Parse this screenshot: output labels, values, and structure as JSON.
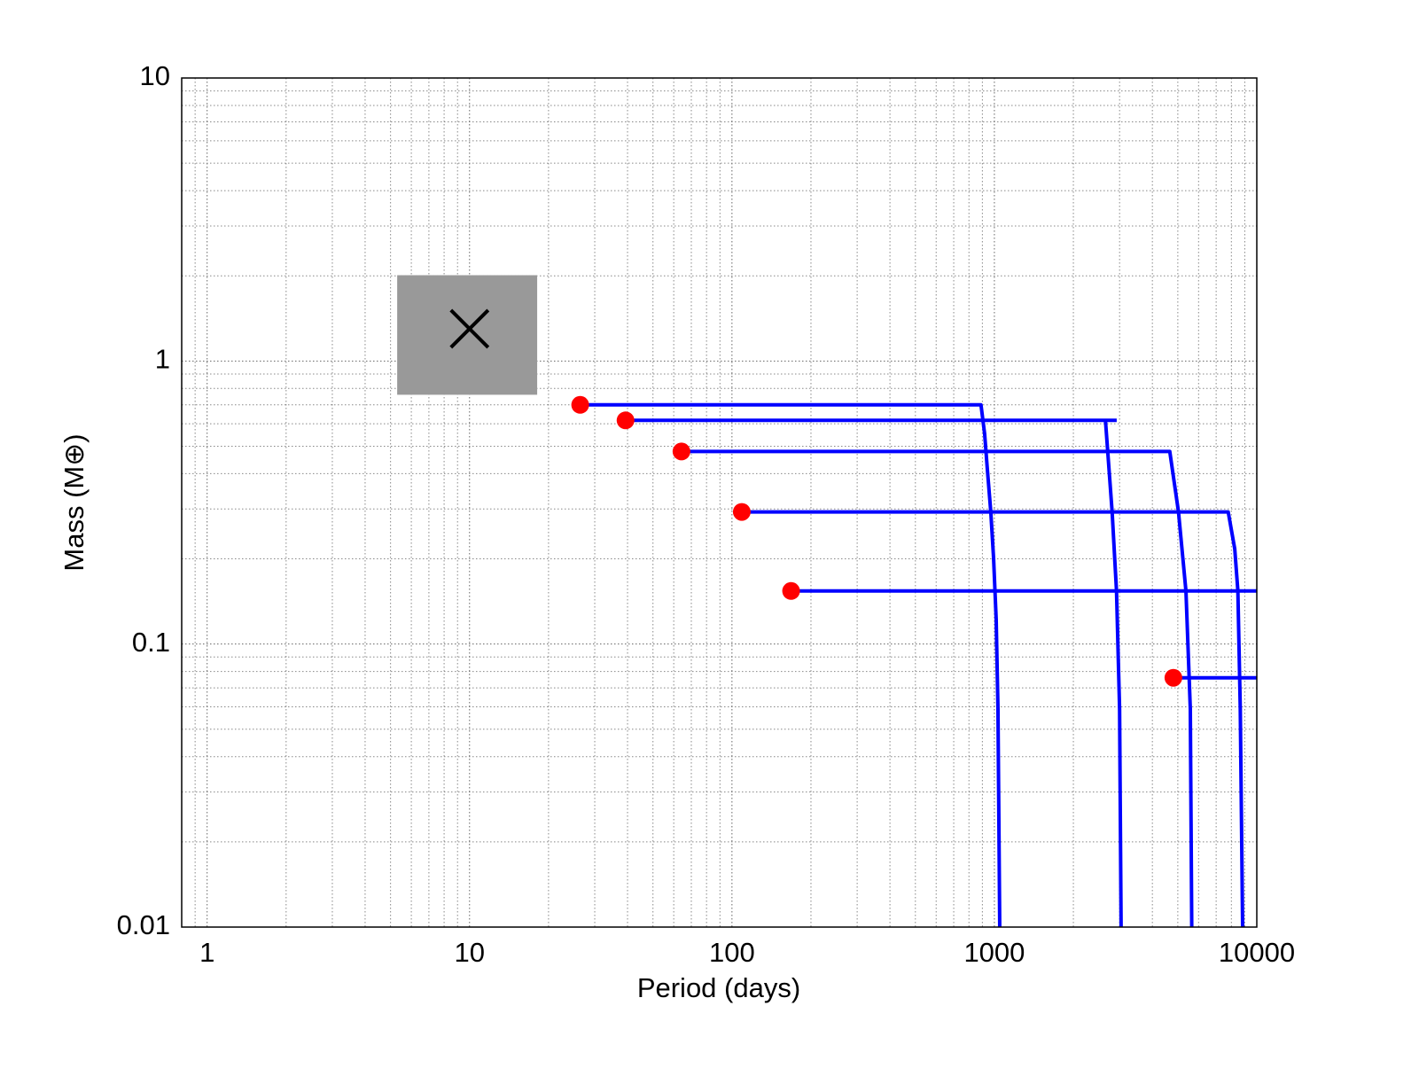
{
  "chart_data": {
    "type": "line",
    "xlabel": "Period (days)",
    "ylabel": "Mass (M⊕)",
    "xscale": "log",
    "yscale": "log",
    "xlim": [
      0.8,
      10000
    ],
    "ylim": [
      0.01,
      10
    ],
    "xticks": [
      1,
      10,
      100,
      1000,
      10000
    ],
    "yticks": [
      0.01,
      0.1,
      1,
      10
    ],
    "xminorticks": [
      0.9,
      2,
      3,
      4,
      5,
      6,
      7,
      8,
      9,
      20,
      30,
      40,
      50,
      60,
      70,
      80,
      90,
      200,
      300,
      400,
      500,
      600,
      700,
      800,
      900,
      2000,
      3000,
      4000,
      5000,
      6000,
      7000,
      8000,
      9000
    ],
    "yminorticks": [
      0.02,
      0.03,
      0.04,
      0.05,
      0.06,
      0.07,
      0.08,
      0.09,
      0.2,
      0.3,
      0.4,
      0.5,
      0.6,
      0.7,
      0.8,
      0.9,
      2,
      3,
      4,
      5,
      6,
      7,
      8,
      9
    ],
    "grid": true,
    "region": {
      "x": [
        5.3,
        18.1
      ],
      "y": [
        0.76,
        2.01
      ],
      "color": "#999999"
    },
    "marker": {
      "x": 10,
      "y": 1.3,
      "color": "#000000"
    },
    "points": {
      "color": "#ff0000",
      "x": [
        26.4,
        39.3,
        64.2,
        109,
        168,
        4810
      ],
      "y": [
        0.7,
        0.617,
        0.479,
        0.293,
        0.154,
        0.076
      ]
    },
    "series": [
      {
        "color": "#0000ff",
        "x": [
          26.4,
          889,
          918,
          940,
          969,
          993,
          1016,
          1032,
          1048
        ],
        "y": [
          0.7,
          0.7,
          0.553,
          0.415,
          0.293,
          0.201,
          0.122,
          0.059,
          0.01
        ]
      },
      {
        "color": "#0000ff",
        "x": [
          39.3,
          2925,
          null,
          2650,
          2810,
          2920,
          3000,
          3040
        ],
        "y": [
          0.617,
          0.617,
          null,
          0.617,
          0.293,
          0.154,
          0.059,
          0.01
        ]
      },
      {
        "color": "#0000ff",
        "x": [
          64.2,
          4660,
          5030,
          5370,
          5580,
          5650
        ],
        "y": [
          0.479,
          0.479,
          0.293,
          0.154,
          0.059,
          0.01
        ]
      },
      {
        "color": "#0000ff",
        "x": [
          109,
          7780,
          8240,
          8470,
          8650,
          8830
        ],
        "y": [
          0.293,
          0.293,
          0.217,
          0.154,
          0.059,
          0.01
        ]
      },
      {
        "color": "#0000ff",
        "x": [
          168,
          10000
        ],
        "y": [
          0.154,
          0.154
        ]
      },
      {
        "color": "#0000ff",
        "x": [
          4810,
          10000
        ],
        "y": [
          0.076,
          0.076
        ]
      }
    ]
  }
}
